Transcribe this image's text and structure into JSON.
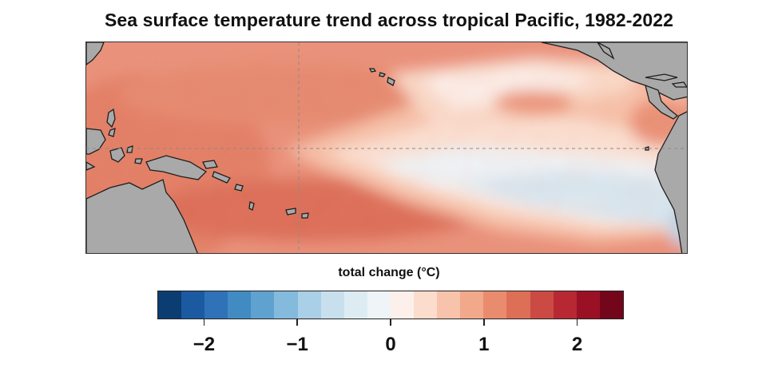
{
  "title": "Sea surface temperature trend across tropical Pacific, 1982-2022",
  "colorbar": {
    "label": "total change (°C)",
    "range": [
      -2.5,
      2.5
    ],
    "step": 0.25,
    "colors": [
      "#0b3d72",
      "#1b5aa0",
      "#2f72b7",
      "#418bc2",
      "#5fa1cf",
      "#84badb",
      "#a9d0e6",
      "#c8e0ee",
      "#ddecf3",
      "#eef4f7",
      "#fdf0ea",
      "#fbdccd",
      "#f7c3ab",
      "#f2a88a",
      "#e98c6e",
      "#dd6f57",
      "#cc4a44",
      "#b72833",
      "#9a1025",
      "#74061c"
    ],
    "ticks": [
      {
        "value": -2,
        "label": "−2"
      },
      {
        "value": -1,
        "label": "−1"
      },
      {
        "value": 0,
        "label": "0"
      },
      {
        "value": 1,
        "label": "1"
      },
      {
        "value": 2,
        "label": "2"
      }
    ]
  },
  "map": {
    "projection": "equirectangular",
    "land_color": "#a9a9a9",
    "gridlines": "dashed, equator and 180° meridian",
    "regions": [
      "Maritime Continent",
      "New Guinea",
      "Australia",
      "Hawaii",
      "Central America",
      "South America",
      "Caribbean"
    ]
  }
}
